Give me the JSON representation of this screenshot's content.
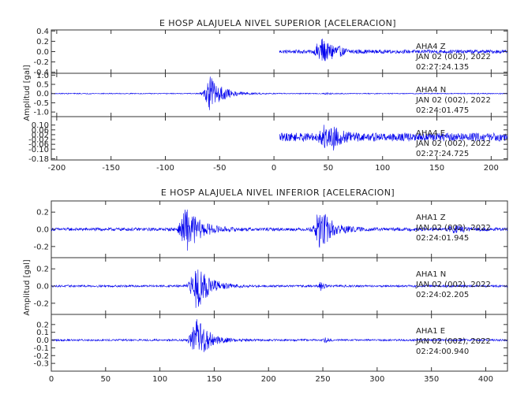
{
  "chart_data": [
    {
      "type": "line",
      "title": "E HOSP ALAJUELA NIVEL SUPERIOR [ACELERACION]",
      "ylabel": "Amplitud [gal]",
      "xlabel": "",
      "xlim": [
        -205,
        215
      ],
      "xticks": [
        -200,
        -150,
        -100,
        -50,
        0,
        50,
        100,
        150,
        200
      ],
      "xtick_labels": [
        "-200",
        "-150",
        "-100",
        "-50",
        "0",
        "50",
        "100",
        "150",
        "200"
      ],
      "grid": false,
      "legend": "none",
      "line_color": "#0000ee",
      "panels": [
        {
          "component": "Z",
          "station_label": "AHA4   Z",
          "date_label": "JAN 02 (002), 2022",
          "time_label": "02:27:24.135",
          "ylim": [
            -0.42,
            0.42
          ],
          "yticks": [
            -0.4,
            -0.2,
            0.0,
            0.2,
            0.4
          ],
          "ytick_labels": [
            "-0.4",
            "-0.2",
            "0.0",
            "0.2",
            "0.4"
          ],
          "start": 5,
          "end": 215,
          "baseline": 0.0,
          "noise": 0.035,
          "events": [
            {
              "t": 43,
              "amp": 0.3,
              "width": 14
            },
            {
              "t": 55,
              "amp": 0.1,
              "width": 12
            }
          ]
        },
        {
          "component": "N",
          "station_label": "AHA4   N",
          "date_label": "JAN 02 (002), 2022",
          "time_label": "02:24:01.475",
          "ylim": [
            -1.25,
            1.1
          ],
          "yticks": [
            -1.0,
            -0.5,
            0.0,
            0.5,
            1.0
          ],
          "ytick_labels": [
            "-1.0",
            "-0.5",
            "0.0",
            "0.5",
            "1.0"
          ],
          "start": -205,
          "end": 215,
          "baseline": 0.0,
          "noise": 0.025,
          "events": [
            {
              "t": -58,
              "amp": 0.95,
              "width": 20
            },
            {
              "t": 48,
              "amp": 0.06,
              "width": 6
            }
          ]
        },
        {
          "component": "E",
          "station_label": "AHA4   E",
          "date_label": "JAN 02 (002), 2022",
          "time_label": "02:27:24.725",
          "ylim": [
            -0.19,
            0.17
          ],
          "yticks": [
            -0.18,
            -0.1,
            -0.06,
            -0.02,
            0.02,
            0.06,
            0.1
          ],
          "ytick_labels": [
            "-0.18",
            "-0.10",
            "-0.06",
            "-0.02",
            "0.02",
            "0.06",
            "0.10"
          ],
          "start": 5,
          "end": 215,
          "baseline": 0.0,
          "noise": 0.035,
          "events": [
            {
              "t": 45,
              "amp": 0.1,
              "width": 10
            },
            {
              "t": 55,
              "amp": 0.06,
              "width": 12
            }
          ]
        }
      ]
    },
    {
      "type": "line",
      "title": "E HOSP ALAJUELA NIVEL INFERIOR [ACELERACION]",
      "ylabel": "Amplitud [gal]",
      "xlabel": "",
      "xlim": [
        0,
        420
      ],
      "xticks": [
        0,
        50,
        100,
        150,
        200,
        250,
        300,
        350,
        400
      ],
      "xtick_labels": [
        "0",
        "50",
        "100",
        "150",
        "200",
        "250",
        "300",
        "350",
        "400"
      ],
      "grid": false,
      "legend": "none",
      "line_color": "#0000ee",
      "panels": [
        {
          "component": "Z",
          "station_label": "AHA1   Z",
          "date_label": "JAN 02 (002), 2022",
          "time_label": "02:24:01.945",
          "ylim": [
            -0.33,
            0.33
          ],
          "yticks": [
            -0.2,
            0.0,
            0.2
          ],
          "ytick_labels": [
            "-0.2",
            "0.0",
            "0.2"
          ],
          "start": 0,
          "end": 420,
          "baseline": 0.0,
          "noise": 0.018,
          "events": [
            {
              "t": 125,
              "amp": 0.25,
              "width": 22
            },
            {
              "t": 248,
              "amp": 0.24,
              "width": 20
            },
            {
              "t": 370,
              "amp": 0.04,
              "width": 18
            }
          ]
        },
        {
          "component": "N",
          "station_label": "AHA1   N",
          "date_label": "JAN 02 (002), 2022",
          "time_label": "02:24:02.205",
          "ylim": [
            -0.33,
            0.33
          ],
          "yticks": [
            -0.2,
            0.0,
            0.2
          ],
          "ytick_labels": [
            "-0.2",
            "0.0",
            "0.2"
          ],
          "start": 0,
          "end": 420,
          "baseline": 0.0,
          "noise": 0.012,
          "events": [
            {
              "t": 134,
              "amp": 0.28,
              "width": 20
            },
            {
              "t": 248,
              "amp": 0.05,
              "width": 6
            }
          ]
        },
        {
          "component": "E",
          "station_label": "AHA1   E",
          "date_label": "JAN 02 (002), 2022",
          "time_label": "02:24:00.940",
          "ylim": [
            -0.4,
            0.33
          ],
          "yticks": [
            -0.3,
            -0.2,
            -0.1,
            0.0,
            0.1,
            0.2
          ],
          "ytick_labels": [
            "-0.3",
            "-0.2",
            "-0.1",
            "0.0",
            "0.1",
            "0.2"
          ],
          "start": 0,
          "end": 420,
          "baseline": 0.0,
          "noise": 0.012,
          "events": [
            {
              "t": 134,
              "amp": 0.28,
              "width": 20
            },
            {
              "t": 252,
              "amp": 0.03,
              "width": 8
            }
          ]
        }
      ]
    }
  ]
}
